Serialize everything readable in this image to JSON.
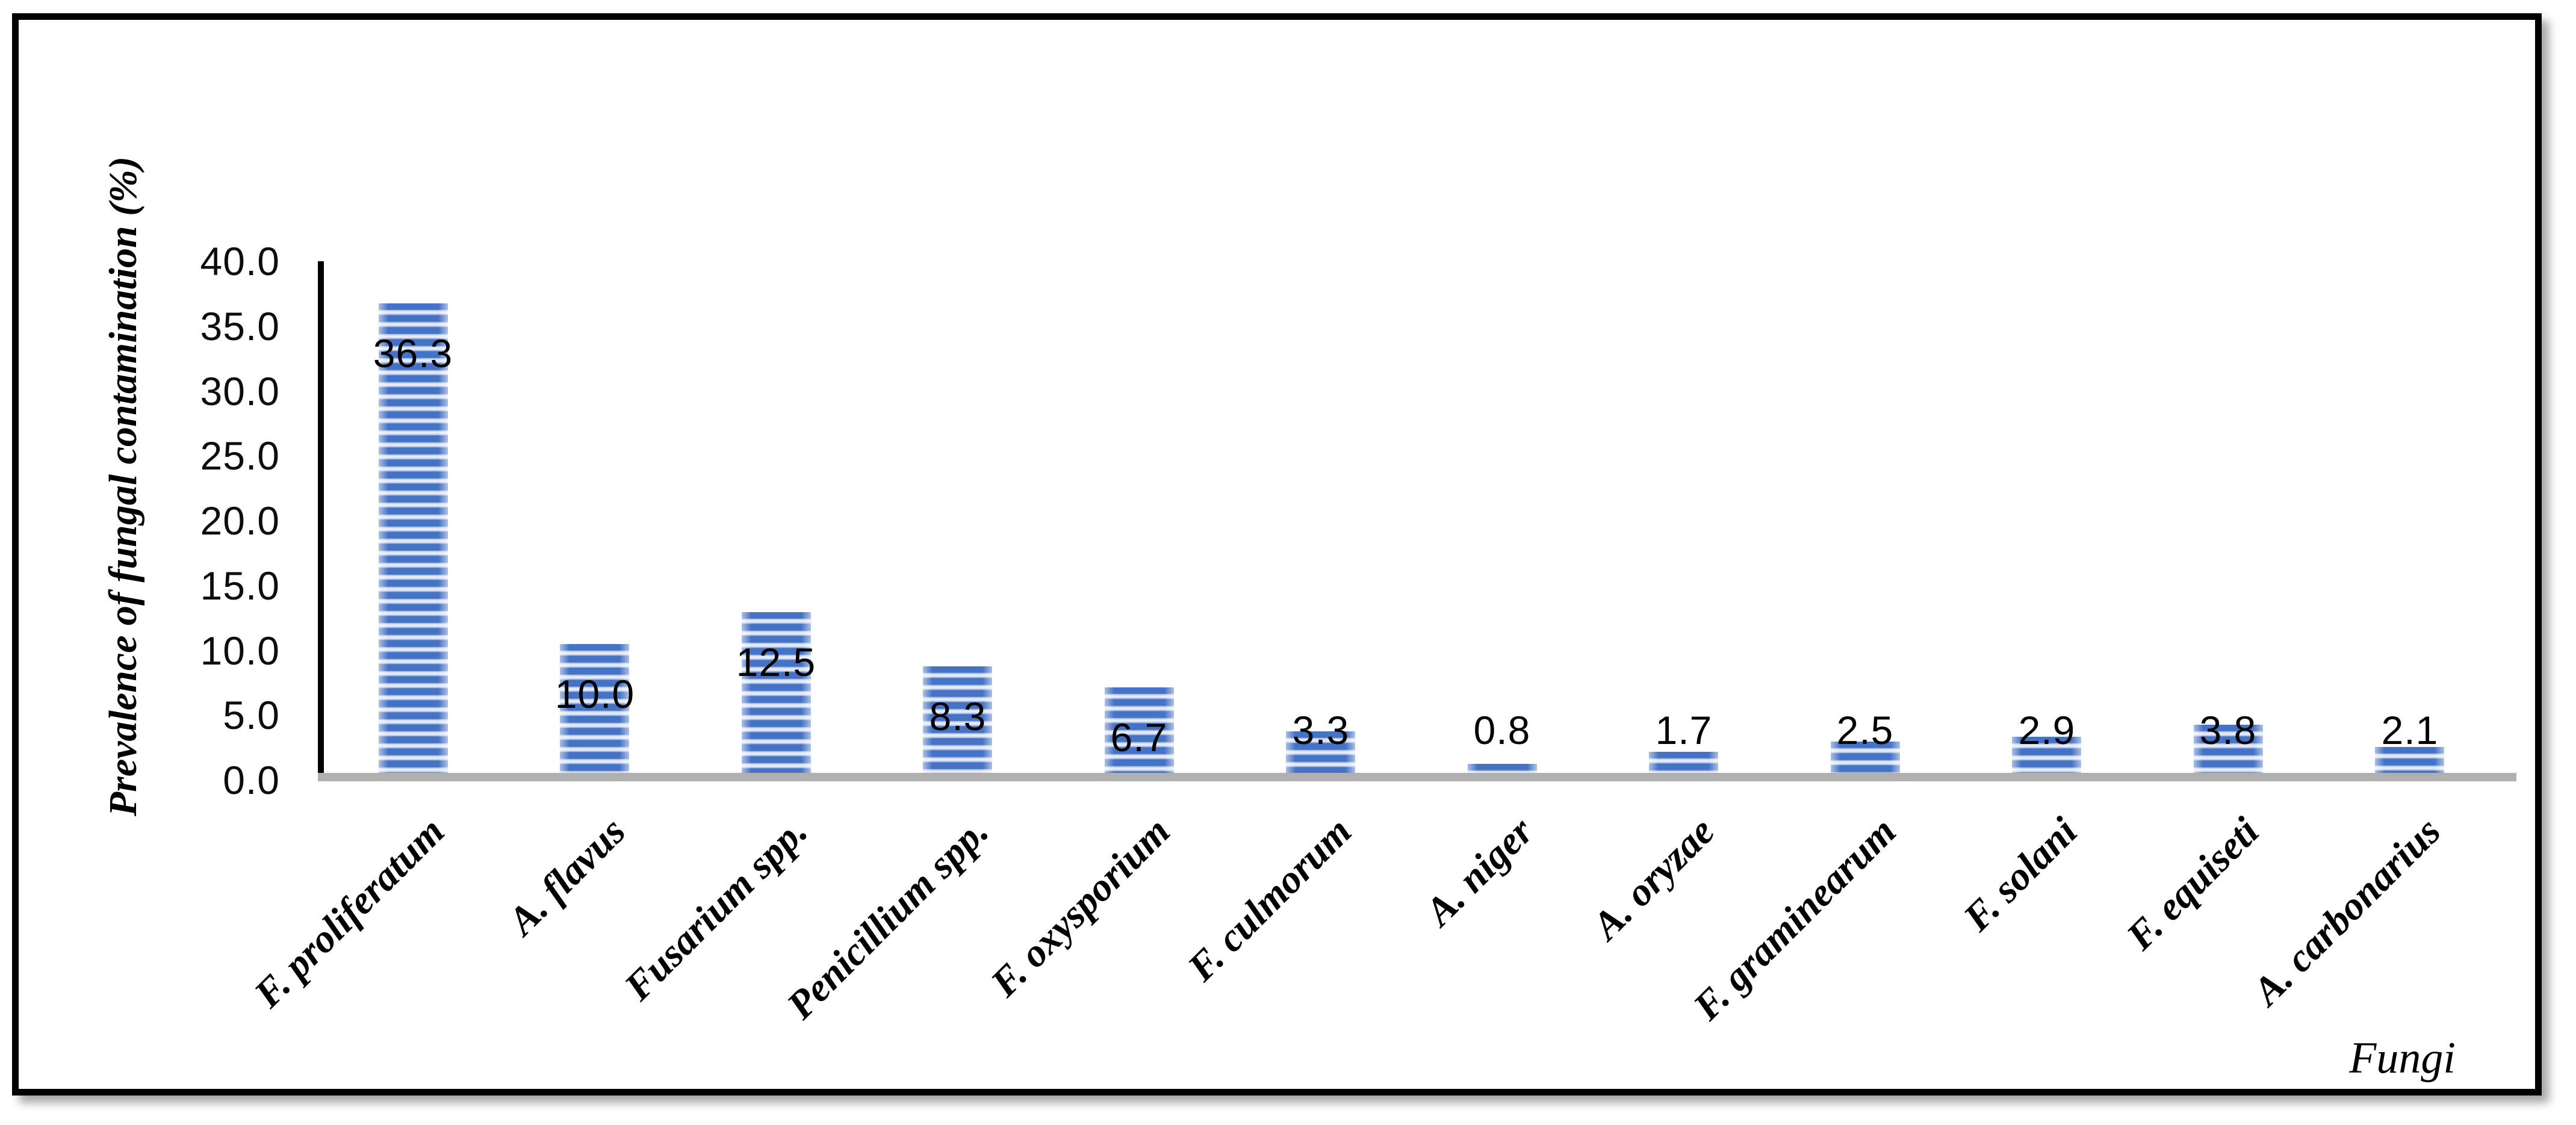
{
  "figure": {
    "background": "#ffffff",
    "border_color": "#000000"
  },
  "chart_data": {
    "type": "bar",
    "title": "",
    "ylabel": "Prevalence of fungal contamination (%)",
    "xlabel": "Fungi",
    "categories": [
      "F. proliferatum",
      "A. flavus",
      "Fusarium spp.",
      "Penicillium spp.",
      "F. oxysporium",
      "F. culmorum",
      "A. niger",
      "A. oryzae",
      "F. graminearum",
      "F. solani",
      "F. equiseti",
      "A. carbonarius"
    ],
    "values": [
      36.3,
      10.0,
      12.5,
      8.3,
      6.7,
      3.3,
      0.8,
      1.7,
      2.5,
      2.9,
      3.8,
      2.1
    ],
    "value_labels": [
      "36.3",
      "10.0",
      "12.5",
      "8.3",
      "6.7",
      "3.3",
      "0.8",
      "1.7",
      "2.5",
      "2.9",
      "3.8",
      "2.1"
    ],
    "ylim": [
      0,
      40
    ],
    "ytick_values": [
      40,
      35,
      30,
      25,
      20,
      15,
      10,
      5,
      0
    ],
    "ytick_labels": [
      "40.0",
      "35.0",
      "30.0",
      "25.0",
      "20.0",
      "15.0",
      "10.0",
      "5.0",
      "0.0"
    ],
    "grid": false,
    "legend": false,
    "bar_fill_dark": "#4472c4",
    "bar_fill_light": "#eef3fb",
    "axis_line_color": "#000000",
    "baseline_color": "#b0b0b0",
    "label_color": "#000000"
  }
}
